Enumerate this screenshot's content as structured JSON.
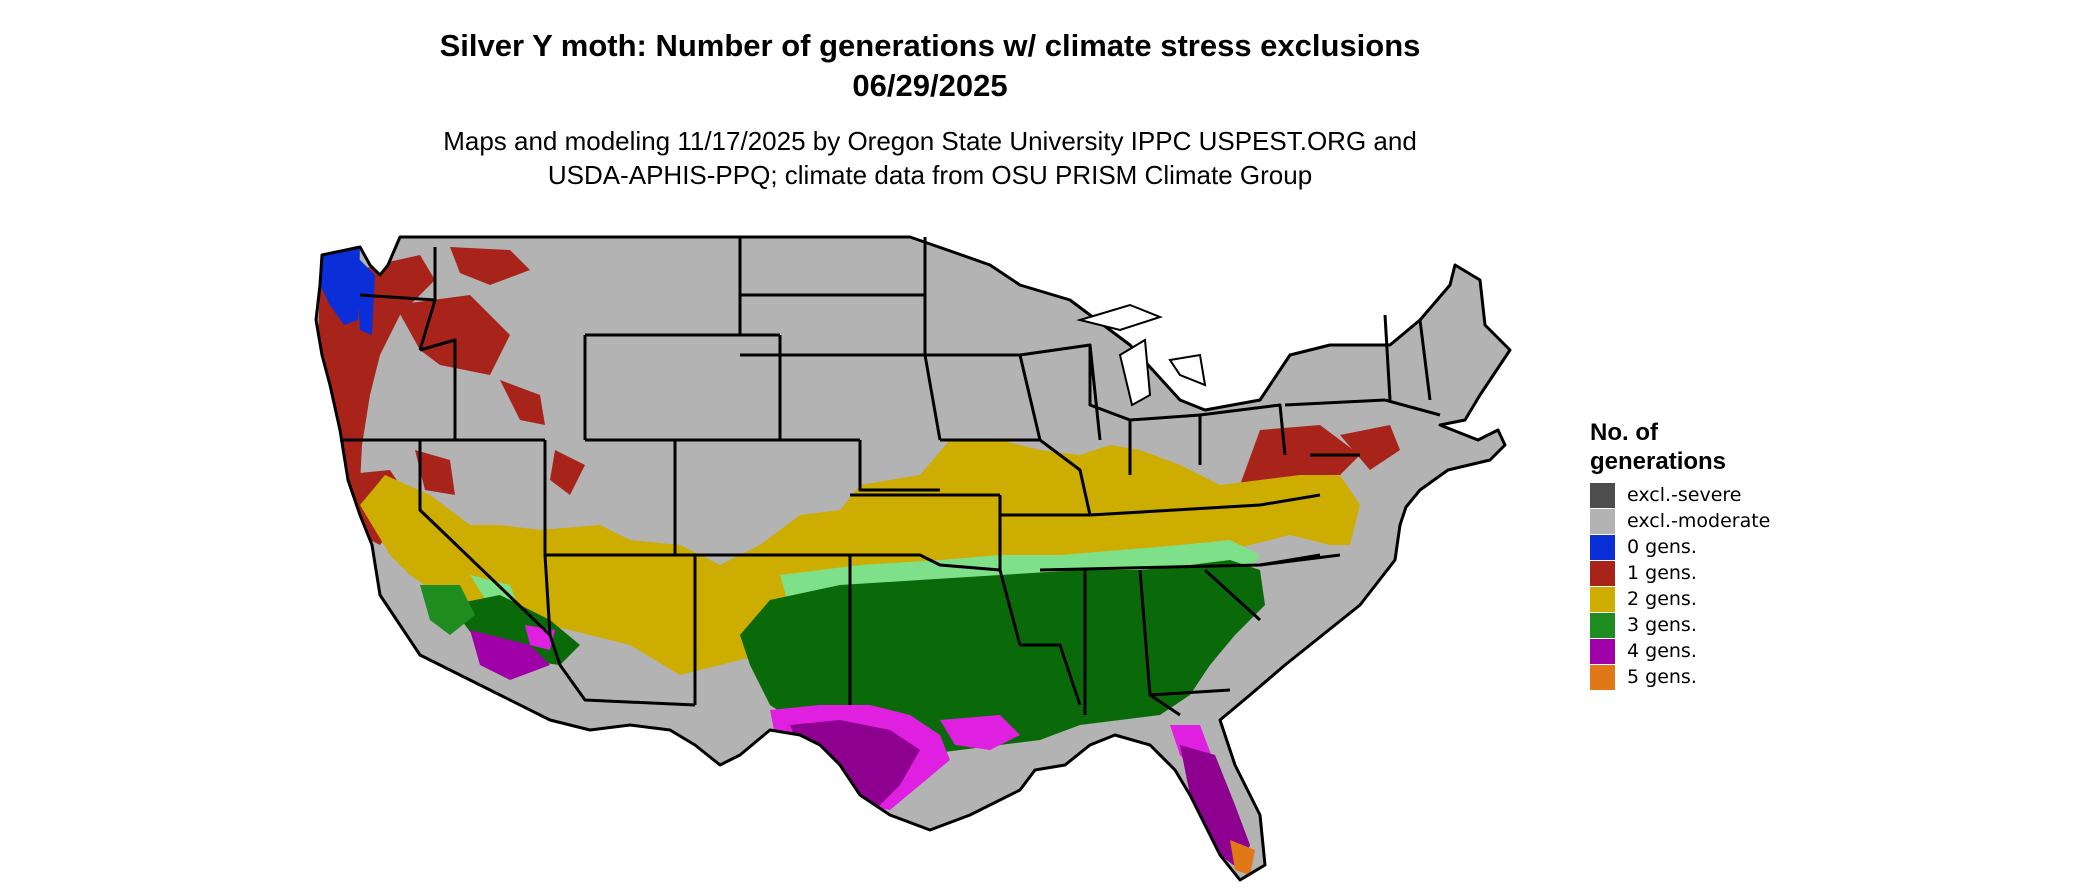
{
  "title": {
    "line1": "Silver Y moth: Number of generations w/ climate stress exclusions",
    "line2": "06/29/2025"
  },
  "subtitle": {
    "line1": "Maps and modeling 11/17/2025 by Oregon State University IPPC USPEST.ORG and",
    "line2": "USDA-APHIS-PPQ; climate data from OSU PRISM Climate Group"
  },
  "legend": {
    "title_line1": "No. of",
    "title_line2": "generations",
    "items": [
      {
        "label": "excl.-severe",
        "color": "#4d4d4d"
      },
      {
        "label": "excl.-moderate",
        "color": "#b3b3b3"
      },
      {
        "label": "0 gens.",
        "color": "#0a2ed8"
      },
      {
        "label": "1 gens.",
        "color": "#a8241a"
      },
      {
        "label": "2 gens.",
        "color": "#ccad00"
      },
      {
        "label": "3 gens.",
        "color": "#1e8c1e"
      },
      {
        "label": "4 gens.",
        "color": "#a000a8"
      },
      {
        "label": "5 gens.",
        "color": "#e07818"
      }
    ]
  },
  "map_colors": {
    "light_green": "#7fe08a",
    "dark_green": "#0a6a0a",
    "magenta": "#e020e0",
    "purple": "#8e0090",
    "state_border": "#000000"
  }
}
